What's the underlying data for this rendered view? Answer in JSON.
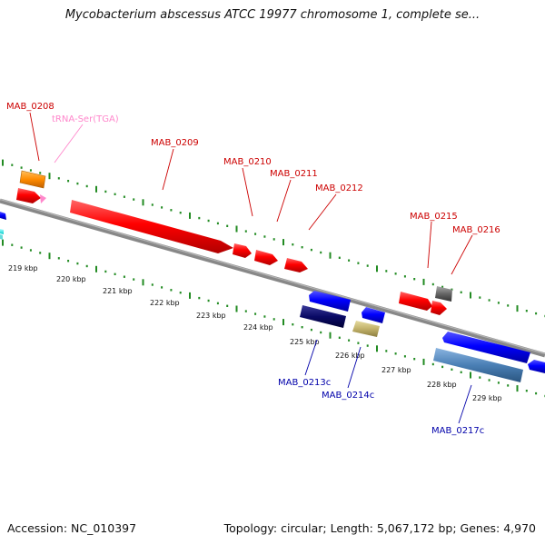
{
  "header": {
    "title": "Mycobacterium abscessus ATCC 19977 chromosome 1, complete se..."
  },
  "footer": {
    "accession": "Accession: NC_010397",
    "summary": "Topology: circular; Length: 5,067,172 bp; Genes: 4,970"
  },
  "colors": {
    "forward_label": "#cc0000",
    "reverse_label": "#0000aa",
    "trna_label": "#ff88cc",
    "backbone": "#888888",
    "tick": "#228b22"
  },
  "ruler": [
    "219 kbp",
    "220 kbp",
    "221 kbp",
    "222 kbp",
    "223 kbp",
    "224 kbp",
    "225 kbp",
    "226 kbp",
    "227 kbp",
    "228 kbp",
    "229 kbp"
  ],
  "genes": [
    {
      "label": "MAB_0208",
      "strand": "+",
      "color": "#ff0000"
    },
    {
      "label": "tRNA-Ser(TGA)",
      "strand": "+",
      "color": "#ff88cc"
    },
    {
      "label": "MAB_0209",
      "strand": "+",
      "color": "#ff0000"
    },
    {
      "label": "MAB_0210",
      "strand": "+",
      "color": "#ff0000"
    },
    {
      "label": "MAB_0211",
      "strand": "+",
      "color": "#ff0000"
    },
    {
      "label": "MAB_0212",
      "strand": "+",
      "color": "#ff0000"
    },
    {
      "label": "MAB_0215",
      "strand": "+",
      "color": "#ff0000"
    },
    {
      "label": "MAB_0216",
      "strand": "+",
      "color": "#ff0000"
    },
    {
      "label": "MAB_0213c",
      "strand": "-",
      "color": "#0000ff"
    },
    {
      "label": "MAB_0214c",
      "strand": "-",
      "color": "#0000ff"
    },
    {
      "label": "MAB_0217c",
      "strand": "-",
      "color": "#0000ff"
    }
  ]
}
